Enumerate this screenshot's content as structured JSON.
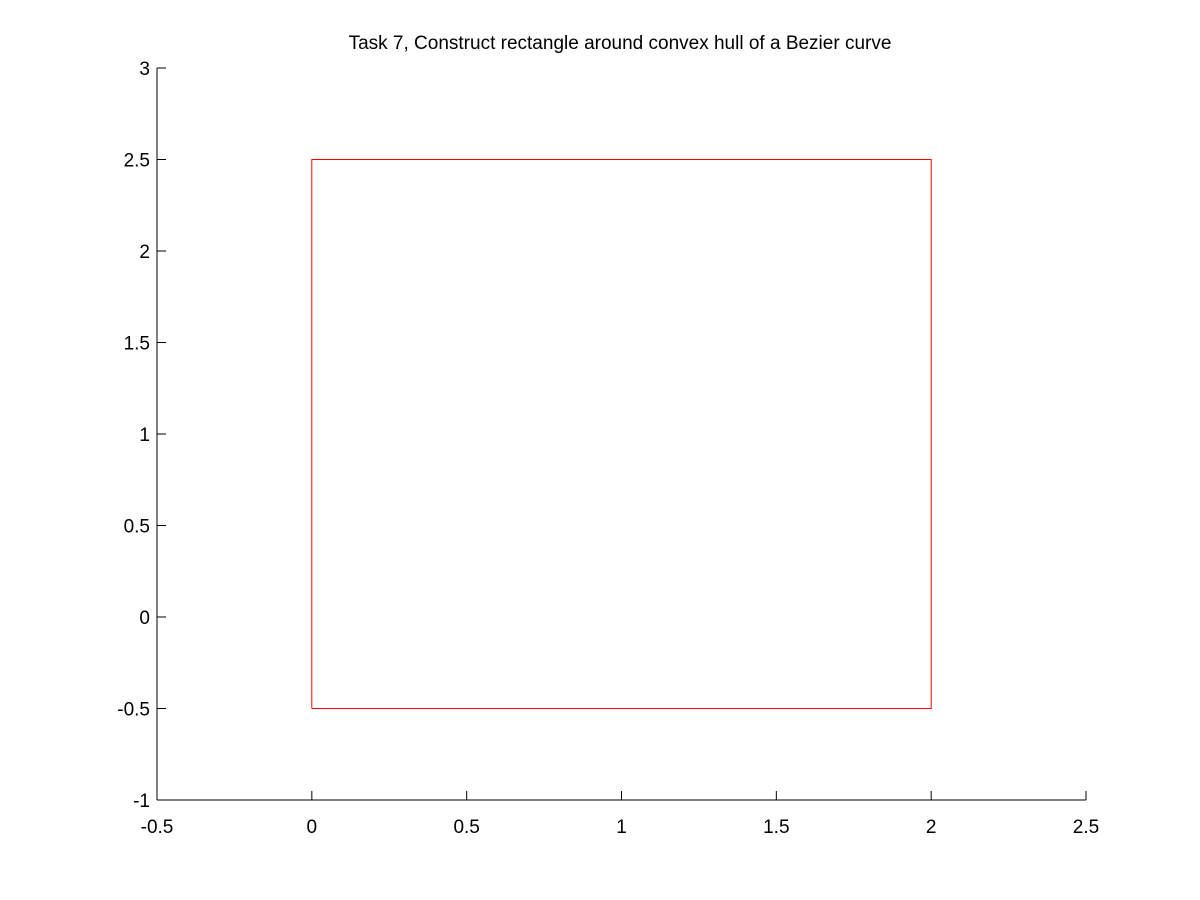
{
  "chart_data": {
    "type": "line",
    "title": "Task 7, Construct rectangle around convex hull of a Bezier curve",
    "xlabel": "",
    "ylabel": "",
    "xlim": [
      -0.5,
      2.5
    ],
    "ylim": [
      -1,
      3
    ],
    "xticks": [
      -0.5,
      0,
      0.5,
      1,
      1.5,
      2,
      2.5
    ],
    "xtick_labels": [
      "-0.5",
      "0",
      "0.5",
      "1",
      "1.5",
      "2",
      "2.5"
    ],
    "yticks": [
      -1,
      -0.5,
      0,
      0.5,
      1,
      1.5,
      2,
      2.5,
      3
    ],
    "ytick_labels": [
      "-1",
      "-0.5",
      "0",
      "0.5",
      "1",
      "1.5",
      "2",
      "2.5",
      "3"
    ],
    "grid": false,
    "axes_box": false,
    "series": [
      {
        "color": "#ff0000",
        "x": [
          0,
          2,
          2,
          0,
          0
        ],
        "y": [
          -0.5,
          -0.5,
          2.5,
          2.5,
          -0.5
        ]
      }
    ]
  }
}
